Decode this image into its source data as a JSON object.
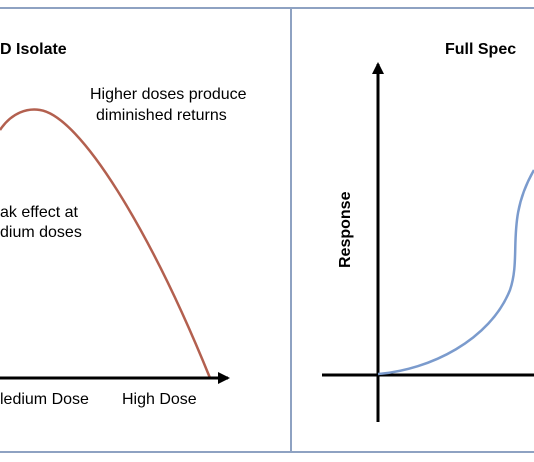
{
  "left_panel": {
    "title": "D Isolate",
    "annotation_top": [
      "Higher doses produce",
      "diminished returns"
    ],
    "annotation_mid": [
      "ak effect at",
      "dium doses"
    ],
    "x_labels": [
      "ledium Dose",
      "High Dose"
    ]
  },
  "right_panel": {
    "title": "Full Spec",
    "y_label": "Response"
  }
}
